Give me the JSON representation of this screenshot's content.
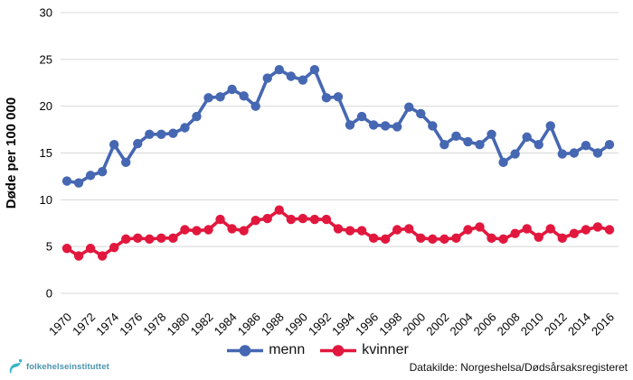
{
  "chart_data": {
    "type": "line",
    "title": "",
    "ylabel": "Døde per 100 000",
    "xlabel": "",
    "ylim": [
      0,
      30
    ],
    "yticks": [
      0,
      5,
      10,
      15,
      20,
      25,
      30
    ],
    "x_tick_step_years": 2,
    "grid": "horizontal",
    "legend_position": "bottom-center",
    "categories": [
      1970,
      1971,
      1972,
      1973,
      1974,
      1975,
      1976,
      1977,
      1978,
      1979,
      1980,
      1981,
      1982,
      1983,
      1984,
      1985,
      1986,
      1987,
      1988,
      1989,
      1990,
      1991,
      1992,
      1993,
      1994,
      1995,
      1996,
      1997,
      1998,
      1999,
      2000,
      2001,
      2002,
      2003,
      2004,
      2005,
      2006,
      2007,
      2008,
      2009,
      2010,
      2011,
      2012,
      2013,
      2014,
      2015,
      2016
    ],
    "series": [
      {
        "name": "menn",
        "color": "#4667b2",
        "values": [
          12.0,
          11.8,
          12.6,
          13.0,
          15.9,
          14.0,
          16.0,
          17.0,
          17.0,
          17.1,
          17.7,
          18.9,
          20.9,
          21.0,
          21.8,
          21.1,
          20.0,
          23.0,
          23.9,
          23.2,
          22.8,
          23.9,
          20.9,
          21.0,
          18.0,
          18.9,
          18.0,
          17.9,
          17.8,
          19.9,
          19.2,
          17.9,
          15.9,
          16.8,
          16.2,
          15.9,
          17.0,
          14.0,
          14.9,
          16.7,
          15.9,
          17.9,
          14.9,
          15.0,
          15.8,
          15.0,
          15.9
        ]
      },
      {
        "name": "kvinner",
        "color": "#e2173d",
        "values": [
          4.8,
          4.0,
          4.8,
          4.0,
          4.9,
          5.8,
          5.9,
          5.8,
          5.9,
          5.9,
          6.8,
          6.7,
          6.8,
          7.9,
          6.9,
          6.7,
          7.8,
          8.0,
          8.9,
          7.9,
          8.0,
          7.9,
          7.9,
          6.9,
          6.7,
          6.7,
          5.9,
          5.8,
          6.8,
          6.9,
          5.9,
          5.8,
          5.8,
          5.9,
          6.8,
          7.1,
          5.9,
          5.8,
          6.4,
          6.9,
          6.0,
          6.9,
          5.9,
          6.4,
          6.8,
          7.1,
          6.8
        ]
      }
    ]
  },
  "footer": {
    "logo_text": "folkehelseinstituttet",
    "source_note": "Datakilde: Norgeshelsa/Dødsårsaksregisteret"
  },
  "colors": {
    "grid": "#d8d8d8",
    "axis_text": "#000000",
    "logo_teal": "#35b5c9",
    "logo_text_color": "#4a93ad"
  }
}
